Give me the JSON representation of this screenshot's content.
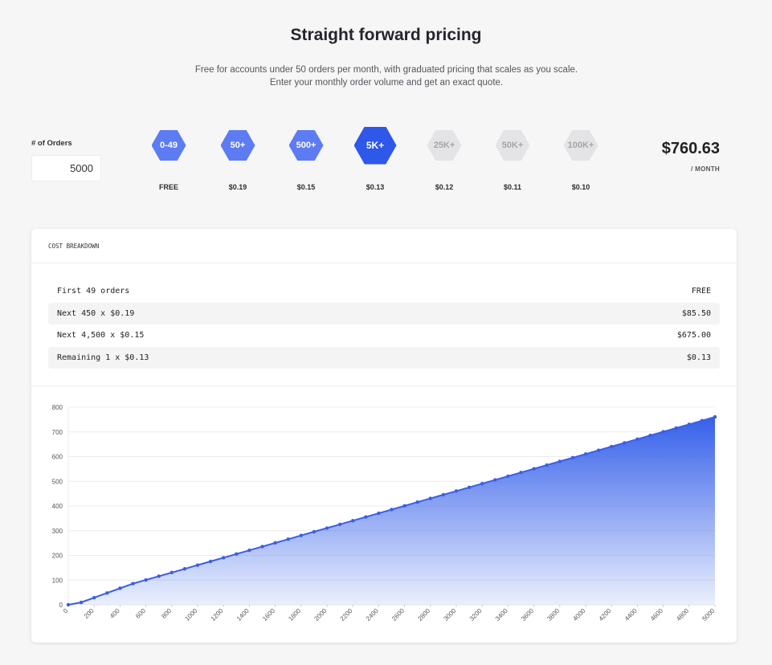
{
  "header": {
    "title": "Straight forward pricing",
    "subtitle": "Free for accounts under 50 orders per month, with graduated pricing that scales as you scale. Enter your monthly order volume and get an exact quote."
  },
  "calculator": {
    "orders_label": "# of Orders",
    "orders_value": "5000",
    "tiers": [
      {
        "label": "0-49",
        "price": "FREE",
        "state": "normal"
      },
      {
        "label": "50+",
        "price": "$0.19",
        "state": "normal"
      },
      {
        "label": "500+",
        "price": "$0.15",
        "state": "normal"
      },
      {
        "label": "5K+",
        "price": "$0.13",
        "state": "active"
      },
      {
        "label": "25K+",
        "price": "$0.12",
        "state": "inactive"
      },
      {
        "label": "50K+",
        "price": "$0.11",
        "state": "inactive"
      },
      {
        "label": "100K+",
        "price": "$0.10",
        "state": "inactive"
      }
    ],
    "total": "$760.63",
    "total_unit": "/ MONTH"
  },
  "breakdown": {
    "title": "COST BREAKDOWN",
    "rows": [
      {
        "label": "First 49 orders",
        "amount": "FREE"
      },
      {
        "label": "Next 450 x $0.19",
        "amount": "$85.50"
      },
      {
        "label": "Next 4,500 x $0.15",
        "amount": "$675.00"
      },
      {
        "label": "Remaining 1 x $0.13",
        "amount": "$0.13"
      }
    ]
  },
  "colors": {
    "accent": "#2e58ea",
    "tier_normal": "#5d7cf4",
    "tier_inactive": "#e4e4e7",
    "line": "#3a5fe6"
  },
  "chart_data": {
    "type": "area",
    "x_step": 100,
    "x_range": [
      0,
      5000
    ],
    "ylim": [
      0,
      800
    ],
    "y_ticks": [
      0,
      100,
      200,
      300,
      400,
      500,
      600,
      700,
      800
    ],
    "x_ticks": [
      0,
      200,
      400,
      600,
      800,
      1000,
      1200,
      1400,
      1600,
      1800,
      2000,
      2200,
      2400,
      2600,
      2800,
      3000,
      3200,
      3400,
      3600,
      3800,
      4000,
      4200,
      4400,
      4600,
      4800,
      5000
    ],
    "values": [
      0,
      9.69,
      28.69,
      47.69,
      66.69,
      85.5,
      100.5,
      115.5,
      130.5,
      145.5,
      160.5,
      175.5,
      190.5,
      205.5,
      220.5,
      235.5,
      250.5,
      265.5,
      280.5,
      295.5,
      310.5,
      325.5,
      340.5,
      355.5,
      370.5,
      385.5,
      400.5,
      415.5,
      430.5,
      445.5,
      460.5,
      475.5,
      490.5,
      505.5,
      520.5,
      535.5,
      550.5,
      565.5,
      580.5,
      595.5,
      610.5,
      625.5,
      640.5,
      655.5,
      670.5,
      685.5,
      700.5,
      715.5,
      730.5,
      745.5,
      760.63
    ],
    "grid": true
  }
}
